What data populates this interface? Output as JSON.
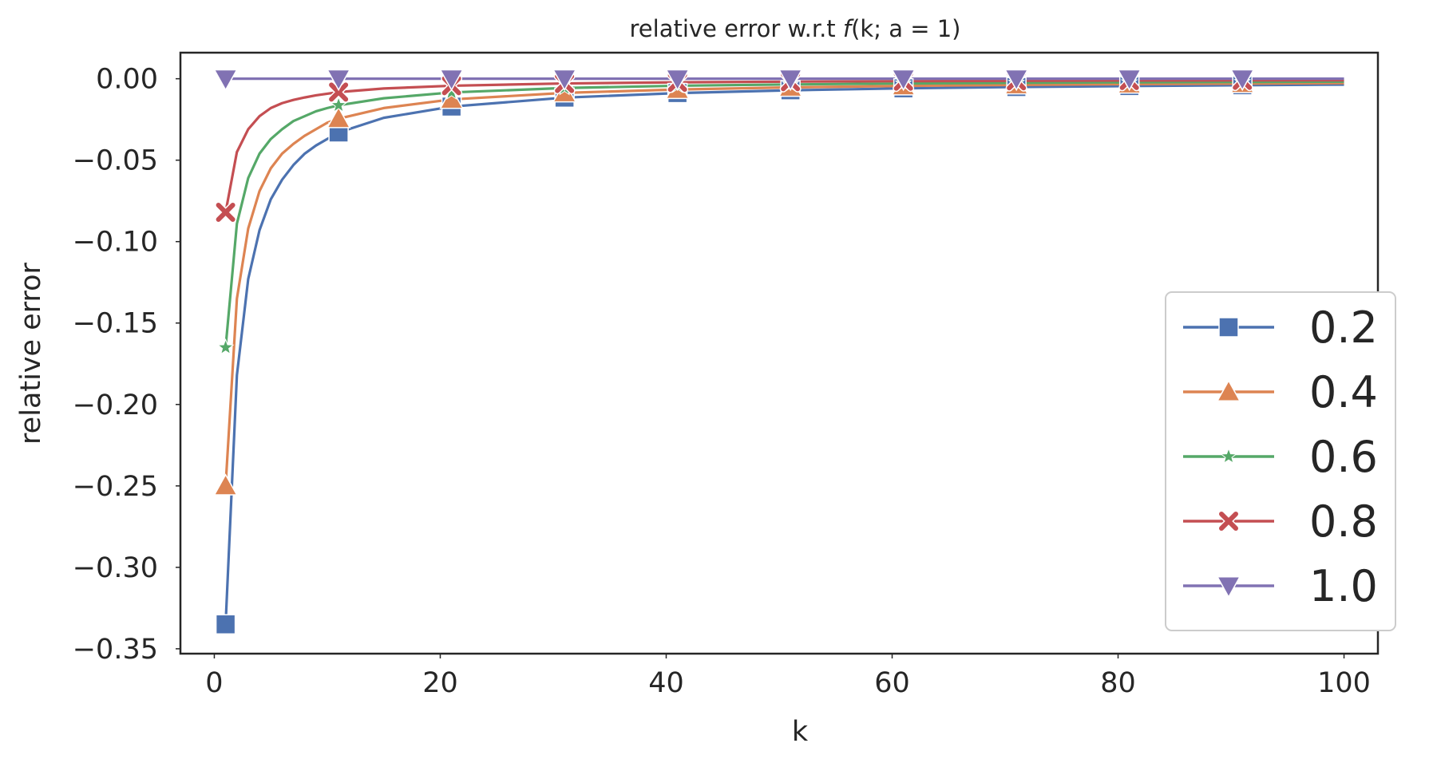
{
  "chart_data": {
    "type": "line",
    "title_text": "relative error w.r.t ",
    "title_math_f": "f",
    "title_math_args": "(k; a = 1)",
    "xlabel": "k",
    "ylabel": "relative error",
    "xlim": [
      -3,
      103
    ],
    "ylim": [
      -0.353,
      0.016
    ],
    "xticks": [
      0,
      20,
      40,
      60,
      80,
      100
    ],
    "yticks": [
      0.0,
      -0.05,
      -0.1,
      -0.15,
      -0.2,
      -0.25,
      -0.3,
      -0.35
    ],
    "ytick_labels": [
      "0.00",
      "−0.05",
      "−0.10",
      "−0.15",
      "−0.20",
      "−0.25",
      "−0.30",
      "−0.35"
    ],
    "xtick_labels": [
      "0",
      "20",
      "40",
      "60",
      "80",
      "100"
    ],
    "grid": false,
    "legend_position": "lower-right",
    "marker_x": [
      1,
      11,
      21,
      31,
      41,
      51,
      61,
      71,
      81,
      91
    ],
    "series": [
      {
        "name": "0.2",
        "color": "#4c72b0",
        "marker": "square",
        "x": [
          1,
          2,
          3,
          4,
          5,
          6,
          7,
          8,
          9,
          10,
          11,
          15,
          21,
          31,
          41,
          51,
          61,
          71,
          81,
          91,
          100
        ],
        "y": [
          -0.335,
          -0.182,
          -0.123,
          -0.093,
          -0.074,
          -0.062,
          -0.053,
          -0.046,
          -0.041,
          -0.037,
          -0.033,
          -0.024,
          -0.0171,
          -0.0116,
          -0.0088,
          -0.0071,
          -0.0059,
          -0.0051,
          -0.0045,
          -0.004,
          -0.0036
        ]
      },
      {
        "name": "0.4",
        "color": "#dd8452",
        "marker": "triangle-up",
        "x": [
          1,
          2,
          3,
          4,
          5,
          6,
          7,
          8,
          9,
          10,
          11,
          15,
          21,
          31,
          41,
          51,
          61,
          71,
          81,
          91,
          100
        ],
        "y": [
          -0.25,
          -0.135,
          -0.092,
          -0.069,
          -0.055,
          -0.046,
          -0.04,
          -0.035,
          -0.031,
          -0.027,
          -0.0245,
          -0.018,
          -0.0127,
          -0.0087,
          -0.0066,
          -0.0053,
          -0.0044,
          -0.0038,
          -0.0033,
          -0.003,
          -0.0027
        ]
      },
      {
        "name": "0.6",
        "color": "#55a868",
        "marker": "star",
        "x": [
          1,
          2,
          3,
          4,
          5,
          6,
          7,
          8,
          9,
          10,
          11,
          15,
          21,
          31,
          41,
          51,
          61,
          71,
          81,
          91,
          100
        ],
        "y": [
          -0.165,
          -0.089,
          -0.061,
          -0.046,
          -0.037,
          -0.031,
          -0.026,
          -0.023,
          -0.02,
          -0.018,
          -0.0163,
          -0.012,
          -0.0084,
          -0.0057,
          -0.0043,
          -0.0035,
          -0.0029,
          -0.0025,
          -0.0022,
          -0.002,
          -0.0018
        ]
      },
      {
        "name": "0.8",
        "color": "#c44e52",
        "marker": "x",
        "x": [
          1,
          2,
          3,
          4,
          5,
          6,
          7,
          8,
          9,
          10,
          11,
          15,
          21,
          31,
          41,
          51,
          61,
          71,
          81,
          91,
          100
        ],
        "y": [
          -0.082,
          -0.045,
          -0.031,
          -0.023,
          -0.018,
          -0.015,
          -0.013,
          -0.0115,
          -0.0102,
          -0.0092,
          -0.0082,
          -0.006,
          -0.0043,
          -0.0029,
          -0.0022,
          -0.0018,
          -0.0015,
          -0.0013,
          -0.0011,
          -0.001,
          -0.0009
        ]
      },
      {
        "name": "1.0",
        "color": "#8172b3",
        "marker": "triangle-down",
        "x": [
          1,
          11,
          21,
          31,
          41,
          51,
          61,
          71,
          81,
          91,
          100
        ],
        "y": [
          0,
          0,
          0,
          0,
          0,
          0,
          0,
          0,
          0,
          0,
          0
        ]
      }
    ]
  }
}
